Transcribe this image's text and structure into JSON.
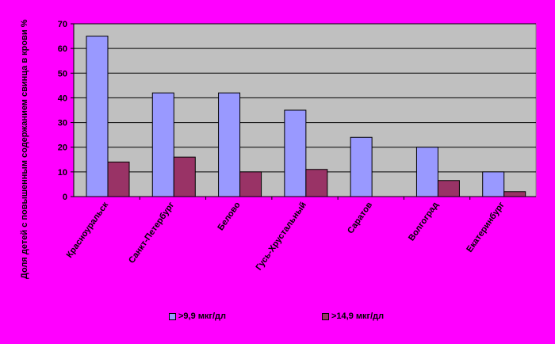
{
  "chart_data": {
    "type": "bar",
    "title": "",
    "ylabel": "Доля детей с повышенным содержанием свинца в крови %",
    "xlabel": "",
    "ylim": [
      0,
      70
    ],
    "yticks": [
      "0",
      "10",
      "20",
      "30",
      "40",
      "50",
      "60",
      "70"
    ],
    "grid": true,
    "legend_position": "bottom",
    "categories": [
      "Красноуральск",
      "Санкт-Петербург",
      "Белово",
      "Гусь-Хрустальный",
      "Саратов",
      "Волгоград",
      "Екатеринбург"
    ],
    "series": [
      {
        "name": ">9,9 мкг/дл",
        "color": "#9999FF",
        "values": [
          65,
          42,
          42,
          35,
          24,
          20,
          10
        ]
      },
      {
        "name": ">14,9 мкг/дл",
        "color": "#993366",
        "values": [
          14,
          16,
          10,
          11,
          0,
          6.5,
          2
        ]
      }
    ],
    "colors": {
      "background": "#FF00FF",
      "plot_area": "#C0C0C0"
    }
  }
}
